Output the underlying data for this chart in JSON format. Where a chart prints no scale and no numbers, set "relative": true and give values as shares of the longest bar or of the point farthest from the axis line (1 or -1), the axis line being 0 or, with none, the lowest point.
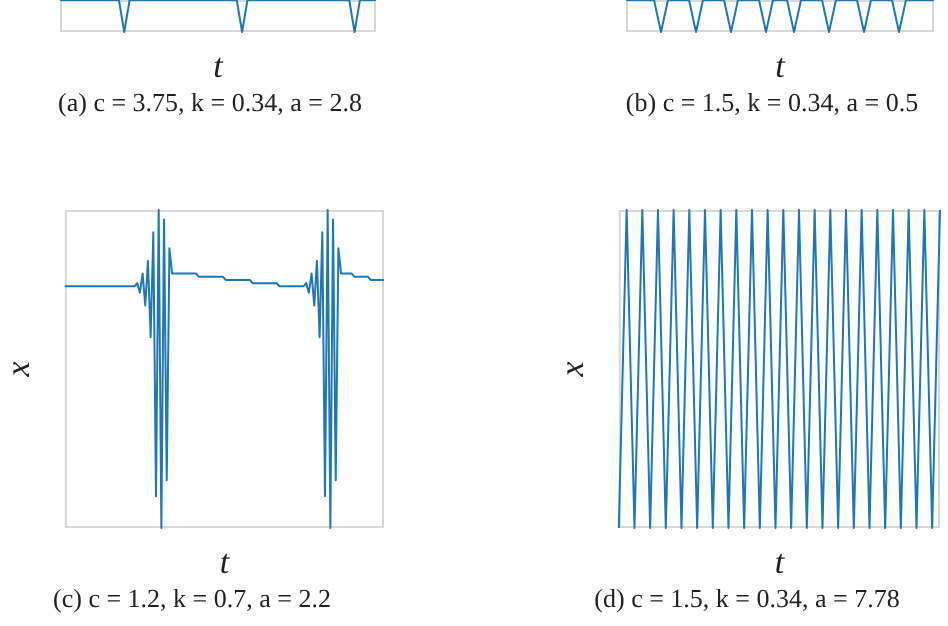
{
  "chart_data": [
    {
      "type": "line",
      "title": "(a) c = 3.75, k = 0.34, a = 2.8",
      "xlabel": "t",
      "relative": true,
      "tick_labels": false,
      "color": "#1f77b4",
      "categories": [
        null,
        null,
        null,
        null,
        null,
        null,
        null,
        null,
        null,
        null,
        null,
        null,
        null,
        null,
        null,
        null,
        null,
        null,
        null,
        null,
        null,
        null,
        null,
        null,
        null,
        null,
        null,
        null,
        null,
        null,
        null,
        null,
        null,
        null,
        null,
        null,
        null,
        null,
        null,
        null,
        null,
        null,
        null,
        null,
        null,
        null,
        null,
        null,
        null,
        null,
        null,
        null,
        null,
        null,
        null,
        null,
        null,
        null,
        null,
        null
      ],
      "values": [
        1,
        1,
        1,
        1,
        1,
        1,
        1,
        1,
        1,
        1,
        1,
        1,
        0,
        1,
        1,
        1,
        1,
        1,
        1,
        1,
        1,
        1,
        1,
        1,
        1,
        1,
        1,
        1,
        1,
        1,
        1,
        1,
        1,
        1,
        0,
        1,
        1,
        1,
        1,
        1,
        1,
        1,
        1,
        1,
        1,
        1,
        1,
        1,
        1,
        1,
        1,
        1,
        1,
        1,
        1,
        0,
        1,
        1,
        1,
        1
      ]
    },
    {
      "type": "line",
      "title": "(b) c = 1.5, k = 0.34, a = 0.5",
      "xlabel": "t",
      "relative": true,
      "tick_labels": false,
      "color": "#1f77b4",
      "categories": [
        null,
        null,
        null,
        null,
        null,
        null,
        null,
        null,
        null,
        null,
        null,
        null,
        null,
        null,
        null,
        null,
        null,
        null,
        null,
        null,
        null,
        null,
        null,
        null,
        null,
        null,
        null,
        null,
        null,
        null,
        null,
        null,
        null,
        null,
        null,
        null,
        null,
        null,
        null,
        null,
        null,
        null,
        null,
        null,
        null
      ],
      "values": [
        1,
        1,
        1,
        1,
        1,
        0,
        1,
        1,
        1,
        1,
        0,
        1,
        1,
        1,
        1,
        0,
        1,
        1,
        1,
        1,
        0,
        1,
        1,
        1,
        0,
        1,
        1,
        1,
        1,
        0,
        1,
        1,
        1,
        1,
        0,
        1,
        1,
        1,
        1,
        0,
        1,
        1,
        1,
        1,
        1
      ]
    },
    {
      "type": "line",
      "title": "(c) c = 1.2, k = 0.7, a = 2.2",
      "xlabel": "t",
      "ylabel": "x",
      "relative": true,
      "tick_labels": false,
      "color": "#1f77b4",
      "categories": [
        null,
        null,
        null,
        null,
        null,
        null,
        null,
        null,
        null,
        null,
        null,
        null,
        null,
        null,
        null,
        null,
        null,
        null,
        null,
        null,
        null,
        null,
        null,
        null,
        null,
        null,
        null,
        null,
        null,
        null,
        null,
        null,
        null,
        null,
        null,
        null,
        null,
        null,
        null,
        null,
        null,
        null,
        null,
        null,
        null,
        null,
        null,
        null,
        null,
        null,
        null,
        null,
        null,
        null,
        null,
        null,
        null,
        null,
        null,
        null,
        null,
        null,
        null,
        null,
        null,
        null,
        null,
        null,
        null,
        null,
        null,
        null,
        null,
        null,
        null,
        null,
        null,
        null,
        null,
        null,
        null,
        null,
        null,
        null,
        null,
        null,
        null,
        null,
        null,
        null,
        null,
        null,
        null,
        null,
        null,
        null,
        null,
        null,
        null,
        null,
        null,
        null,
        null,
        null,
        null,
        null,
        null,
        null,
        null,
        null,
        null,
        null,
        null,
        null,
        null,
        null,
        null,
        null,
        null,
        null
      ],
      "values": [
        0.76,
        0.76,
        0.76,
        0.76,
        0.76,
        0.76,
        0.76,
        0.76,
        0.76,
        0.76,
        0.76,
        0.76,
        0.76,
        0.76,
        0.76,
        0.76,
        0.76,
        0.76,
        0.76,
        0.76,
        0.76,
        0.76,
        0.76,
        0.76,
        0.76,
        0.76,
        0.76,
        0.77,
        0.74,
        0.8,
        0.7,
        0.84,
        0.6,
        0.93,
        0.1,
        1,
        0,
        0.97,
        0.15,
        0.88,
        0.8,
        0.8,
        0.8,
        0.8,
        0.8,
        0.8,
        0.8,
        0.8,
        0.8,
        0.8,
        0.79,
        0.79,
        0.79,
        0.79,
        0.79,
        0.79,
        0.79,
        0.79,
        0.79,
        0.79,
        0.78,
        0.78,
        0.78,
        0.78,
        0.78,
        0.78,
        0.78,
        0.78,
        0.78,
        0.78,
        0.77,
        0.77,
        0.77,
        0.77,
        0.77,
        0.77,
        0.77,
        0.77,
        0.77,
        0.77,
        0.76,
        0.76,
        0.76,
        0.76,
        0.76,
        0.76,
        0.76,
        0.76,
        0.76,
        0.76,
        0.77,
        0.74,
        0.8,
        0.7,
        0.84,
        0.6,
        0.93,
        0.1,
        1,
        0,
        0.97,
        0.15,
        0.88,
        0.8,
        0.8,
        0.8,
        0.8,
        0.8,
        0.79,
        0.79,
        0.79,
        0.79,
        0.79,
        0.79,
        0.78,
        0.78,
        0.78,
        0.78,
        0.78,
        0.78
      ]
    },
    {
      "type": "line",
      "title": "(d) c = 1.5, k = 0.34, a = 7.78",
      "xlabel": "t",
      "ylabel": "x",
      "relative": true,
      "tick_labels": false,
      "color": "#1f77b4",
      "categories": [
        null,
        null,
        null,
        null,
        null,
        null,
        null,
        null,
        null,
        null,
        null,
        null,
        null,
        null,
        null,
        null,
        null,
        null,
        null,
        null,
        null,
        null,
        null,
        null,
        null,
        null,
        null,
        null,
        null,
        null,
        null,
        null,
        null,
        null,
        null,
        null,
        null,
        null,
        null,
        null,
        null,
        null
      ],
      "values": [
        0,
        1,
        0,
        1,
        0,
        1,
        0,
        1,
        0,
        1,
        0,
        1,
        0,
        1,
        0,
        1,
        0,
        1,
        0,
        1,
        0,
        1,
        0,
        1,
        0,
        1,
        0,
        1,
        0,
        1,
        0,
        1,
        0,
        1,
        0,
        1,
        0,
        1,
        0,
        1,
        0,
        1
      ]
    }
  ]
}
